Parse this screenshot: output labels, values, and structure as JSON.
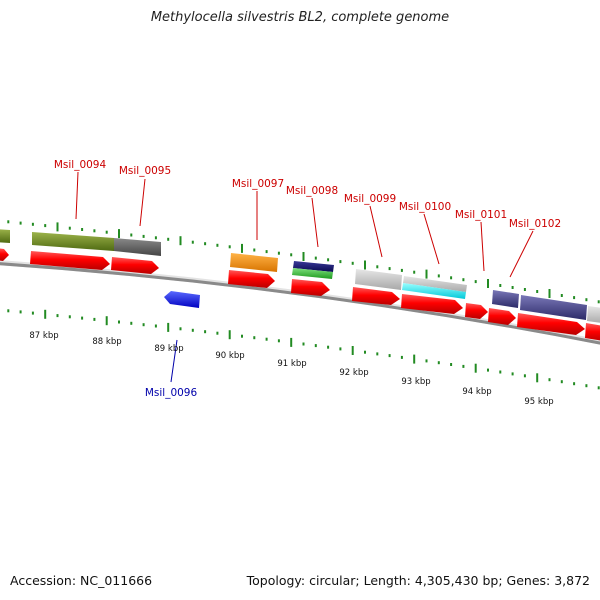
{
  "title": "Methylocella silvestris BL2, complete genome",
  "accession": "Accession: NC_011666",
  "summary": "Topology: circular; Length: 4,305,430 bp; Genes: 3,872",
  "colors": {
    "cds": "#ff0000",
    "label_top": "#cc0000",
    "label_bottom": "#0000aa",
    "tick": "#228b22",
    "backbone": "#999999"
  },
  "ruler_labels": [
    "87 kbp",
    "88 kbp",
    "89 kbp",
    "90 kbp",
    "91 kbp",
    "92 kbp",
    "93 kbp",
    "94 kbp",
    "95 kbp"
  ],
  "gene_labels_top": [
    "Msil_0094",
    "Msil_0095",
    "Msil_0097",
    "Msil_0098",
    "Msil_0099",
    "Msil_0100",
    "Msil_0101",
    "Msil_0102"
  ],
  "gene_labels_bottom": [
    "Msil_0096"
  ]
}
